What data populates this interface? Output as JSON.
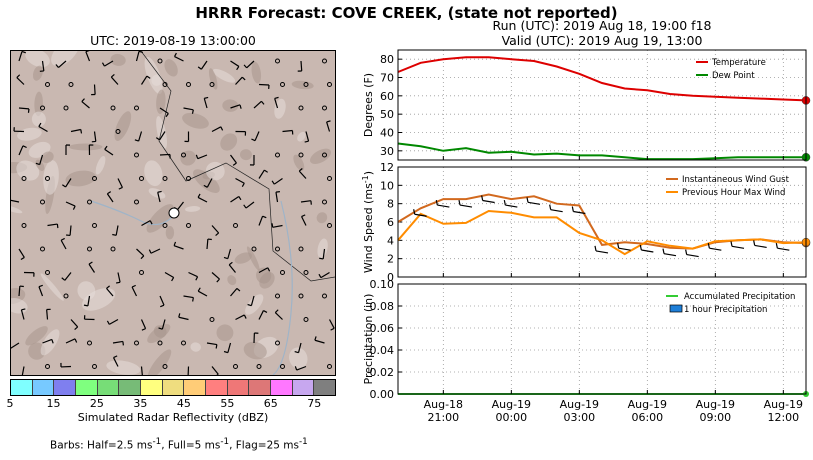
{
  "title": "HRRR Forecast: COVE CREEK, (state not reported)",
  "map": {
    "title": "UTC: 2019-08-19 13:00:00",
    "colorbar": {
      "label": "Simulated Radar Reflectivity (dBZ)",
      "ticks": [
        "5",
        "15",
        "25",
        "35",
        "45",
        "55",
        "65",
        "75"
      ],
      "colors": [
        "#7fffff",
        "#77c9ff",
        "#7f7fef",
        "#7fff7f",
        "#77dd77",
        "#77bb77",
        "#ffff7f",
        "#efdd7f",
        "#ffcc77",
        "#ff7f7f",
        "#ef7777",
        "#dd7777",
        "#ff77ff",
        "#c7a7ef",
        "#7f7f7f"
      ]
    },
    "barb_note": {
      "prefix": "Barbs: Half=2.5 ms",
      "mid1": ", Full=5 ms",
      "mid2": ", Flag=25 ms",
      "sup": "-1"
    }
  },
  "run": {
    "line1": "Run (UTC): 2019 Aug 18, 19:00 f18",
    "line2": "Valid (UTC): 2019 Aug 19, 13:00"
  },
  "chart_data": [
    {
      "type": "line",
      "ylabel": "Degrees (F)",
      "ylim": [
        25,
        85
      ],
      "yticks": [
        30,
        40,
        50,
        60,
        70,
        80
      ],
      "grid": true,
      "legend": "top-right",
      "x_hours": [
        0,
        1,
        2,
        3,
        4,
        5,
        6,
        7,
        8,
        9,
        10,
        11,
        12,
        13,
        14,
        15,
        16,
        17,
        18
      ],
      "series": [
        {
          "name": "Temperature",
          "color": "#dd0000",
          "values": [
            73,
            78,
            80,
            81,
            81,
            80,
            79,
            76,
            72,
            67,
            64,
            63,
            61,
            60,
            59.5,
            59,
            58.5,
            58,
            57.5
          ]
        },
        {
          "name": "Dew Point",
          "color": "#008800",
          "values": [
            34,
            32.5,
            30,
            31.5,
            29,
            29.5,
            28,
            28.5,
            27.5,
            27.5,
            26.5,
            25.5,
            25.5,
            25.5,
            26,
            26.5,
            26.5,
            26.5,
            26.5
          ]
        }
      ]
    },
    {
      "type": "line",
      "ylabel": "Wind Speed (ms",
      "ylabel_sup": "-1",
      "ylim": [
        0,
        12
      ],
      "yticks": [
        0,
        2,
        4,
        6,
        8,
        10,
        12
      ],
      "grid": true,
      "legend": "top-right",
      "x_hours": [
        0,
        1,
        2,
        3,
        4,
        5,
        6,
        7,
        8,
        9,
        10,
        11,
        12,
        13,
        14,
        15,
        16,
        17,
        18
      ],
      "series": [
        {
          "name": "Instantaneous Wind Gust",
          "color": "#d2691e",
          "values": [
            6,
            7.5,
            8.5,
            8.5,
            9,
            8.5,
            8.8,
            8,
            7.8,
            3.5,
            3.8,
            3.6,
            3.2,
            3.1,
            3.8,
            4,
            4.1,
            3.8,
            3.7
          ]
        },
        {
          "name": "Previous Hour Max Wind",
          "color": "#ff8c00",
          "values": [
            4,
            6.9,
            5.8,
            5.9,
            7.2,
            7,
            6.5,
            6.5,
            4.8,
            4,
            2.5,
            3.9,
            3.4,
            3.1,
            3.9,
            4,
            4.1,
            3.7,
            3.8
          ]
        }
      ]
    },
    {
      "type": "line",
      "ylabel": "Precipitation (in)",
      "ylim": [
        0,
        0.1
      ],
      "yticks": [
        "0.00",
        "0.02",
        "0.04",
        "0.06",
        "0.08",
        "0.10"
      ],
      "grid": true,
      "legend": "top-right",
      "x_hours": [
        0,
        1,
        2,
        3,
        4,
        5,
        6,
        7,
        8,
        9,
        10,
        11,
        12,
        13,
        14,
        15,
        16,
        17,
        18
      ],
      "series": [
        {
          "name": "Accumulated Precipitation",
          "color": "#33cc33",
          "values": [
            0,
            0,
            0,
            0,
            0,
            0,
            0,
            0,
            0,
            0,
            0,
            0,
            0,
            0,
            0,
            0,
            0,
            0,
            0
          ]
        },
        {
          "name": "1 hour Precipitation",
          "color": "#1e7fd8",
          "kind": "bar",
          "values": [
            0,
            0,
            0,
            0,
            0,
            0,
            0,
            0,
            0,
            0,
            0,
            0,
            0,
            0,
            0,
            0,
            0,
            0,
            0
          ]
        }
      ],
      "xticks": [
        {
          "hour": 2,
          "line1": "Aug-18",
          "line2": "21:00"
        },
        {
          "hour": 5,
          "line1": "Aug-19",
          "line2": "00:00"
        },
        {
          "hour": 8,
          "line1": "Aug-19",
          "line2": "03:00"
        },
        {
          "hour": 11,
          "line1": "Aug-19",
          "line2": "06:00"
        },
        {
          "hour": 14,
          "line1": "Aug-19",
          "line2": "09:00"
        },
        {
          "hour": 17,
          "line1": "Aug-19",
          "line2": "12:00"
        }
      ]
    }
  ]
}
